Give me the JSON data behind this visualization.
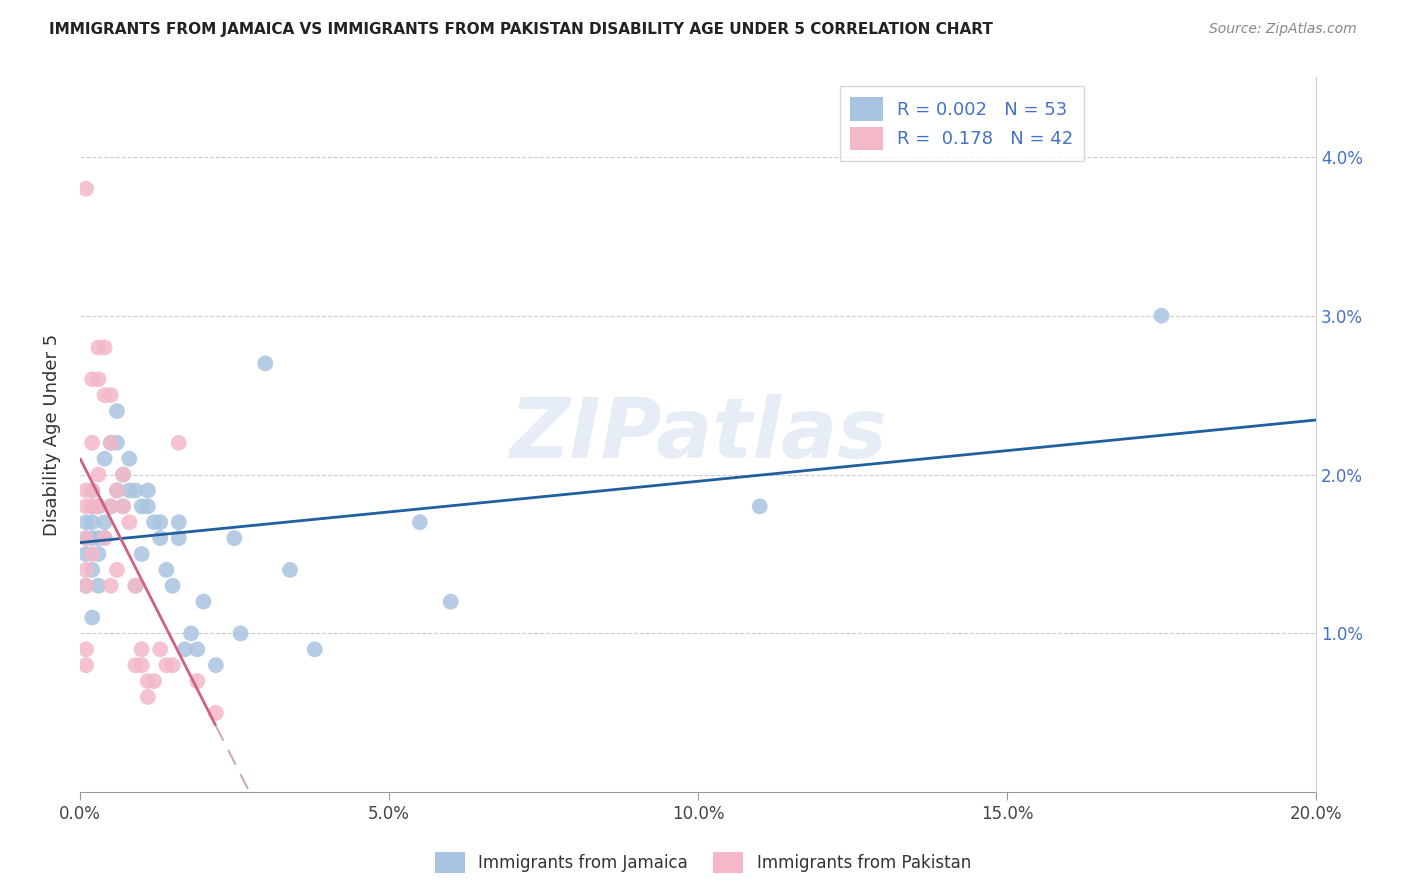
{
  "title": "IMMIGRANTS FROM JAMAICA VS IMMIGRANTS FROM PAKISTAN DISABILITY AGE UNDER 5 CORRELATION CHART",
  "source": "Source: ZipAtlas.com",
  "ylabel": "Disability Age Under 5",
  "xmin": 0.0,
  "xmax": 0.2,
  "ymin": 0.0,
  "ymax": 0.045,
  "xtick_vals": [
    0.0,
    0.05,
    0.1,
    0.15,
    0.2
  ],
  "xtick_labels": [
    "0.0%",
    "5.0%",
    "10.0%",
    "15.0%",
    "20.0%"
  ],
  "ytick_vals": [
    0.01,
    0.02,
    0.03,
    0.04
  ],
  "ytick_labels": [
    "1.0%",
    "2.0%",
    "3.0%",
    "4.0%"
  ],
  "jamaica_color": "#a8c4e0",
  "pakistan_color": "#f4b8c8",
  "jamaica_r": "0.002",
  "jamaica_n": "53",
  "pakistan_r": "0.178",
  "pakistan_n": "42",
  "jamaica_line_color": "#2060a0",
  "pakistan_line_color": "#d06080",
  "pakistan_dash_color": "#ccaabb",
  "watermark": "ZIPatlas",
  "jamaica_x": [
    0.001,
    0.001,
    0.001,
    0.001,
    0.002,
    0.002,
    0.002,
    0.002,
    0.002,
    0.002,
    0.003,
    0.003,
    0.003,
    0.003,
    0.004,
    0.004,
    0.004,
    0.005,
    0.005,
    0.006,
    0.006,
    0.006,
    0.007,
    0.007,
    0.008,
    0.008,
    0.009,
    0.009,
    0.01,
    0.01,
    0.011,
    0.011,
    0.012,
    0.013,
    0.013,
    0.014,
    0.015,
    0.016,
    0.016,
    0.017,
    0.018,
    0.019,
    0.02,
    0.022,
    0.025,
    0.026,
    0.03,
    0.034,
    0.038,
    0.055,
    0.06,
    0.11,
    0.175
  ],
  "jamaica_y": [
    0.017,
    0.016,
    0.015,
    0.013,
    0.019,
    0.018,
    0.017,
    0.016,
    0.014,
    0.011,
    0.016,
    0.015,
    0.018,
    0.013,
    0.017,
    0.021,
    0.016,
    0.022,
    0.018,
    0.024,
    0.022,
    0.019,
    0.02,
    0.018,
    0.021,
    0.019,
    0.019,
    0.013,
    0.018,
    0.015,
    0.018,
    0.019,
    0.017,
    0.016,
    0.017,
    0.014,
    0.013,
    0.017,
    0.016,
    0.009,
    0.01,
    0.009,
    0.012,
    0.008,
    0.016,
    0.01,
    0.027,
    0.014,
    0.009,
    0.017,
    0.012,
    0.018,
    0.03
  ],
  "pakistan_x": [
    0.001,
    0.001,
    0.001,
    0.001,
    0.001,
    0.001,
    0.001,
    0.001,
    0.002,
    0.002,
    0.002,
    0.002,
    0.002,
    0.003,
    0.003,
    0.003,
    0.003,
    0.004,
    0.004,
    0.004,
    0.005,
    0.005,
    0.005,
    0.005,
    0.006,
    0.006,
    0.007,
    0.007,
    0.008,
    0.009,
    0.009,
    0.01,
    0.01,
    0.011,
    0.011,
    0.012,
    0.013,
    0.014,
    0.015,
    0.016,
    0.019,
    0.022
  ],
  "pakistan_y": [
    0.038,
    0.019,
    0.018,
    0.016,
    0.014,
    0.013,
    0.009,
    0.008,
    0.026,
    0.022,
    0.019,
    0.018,
    0.015,
    0.028,
    0.026,
    0.02,
    0.018,
    0.028,
    0.025,
    0.016,
    0.025,
    0.022,
    0.018,
    0.013,
    0.019,
    0.014,
    0.02,
    0.018,
    0.017,
    0.013,
    0.008,
    0.009,
    0.008,
    0.007,
    0.006,
    0.007,
    0.009,
    0.008,
    0.008,
    0.022,
    0.007,
    0.005
  ]
}
